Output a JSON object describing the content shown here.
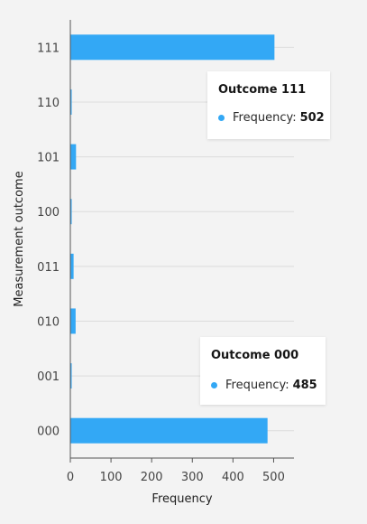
{
  "chart_data": {
    "type": "bar",
    "orientation": "horizontal",
    "categories": [
      "111",
      "110",
      "101",
      "100",
      "011",
      "010",
      "001",
      "000"
    ],
    "series": [
      {
        "values": [
          502,
          1,
          14,
          1,
          8,
          13,
          1,
          485
        ],
        "color": "#33a8f5"
      }
    ],
    "xlabel": "Frequency",
    "ylabel": "Measurement outcome",
    "xlim": [
      0,
      550
    ],
    "xticks": [
      0,
      100,
      200,
      300,
      400,
      500
    ],
    "grid": true,
    "tooltips": [
      {
        "title": "Outcome 111",
        "series_label": "Frequency:",
        "value": "502"
      },
      {
        "title": "Outcome 000",
        "series_label": "Frequency:",
        "value": "485"
      }
    ]
  }
}
